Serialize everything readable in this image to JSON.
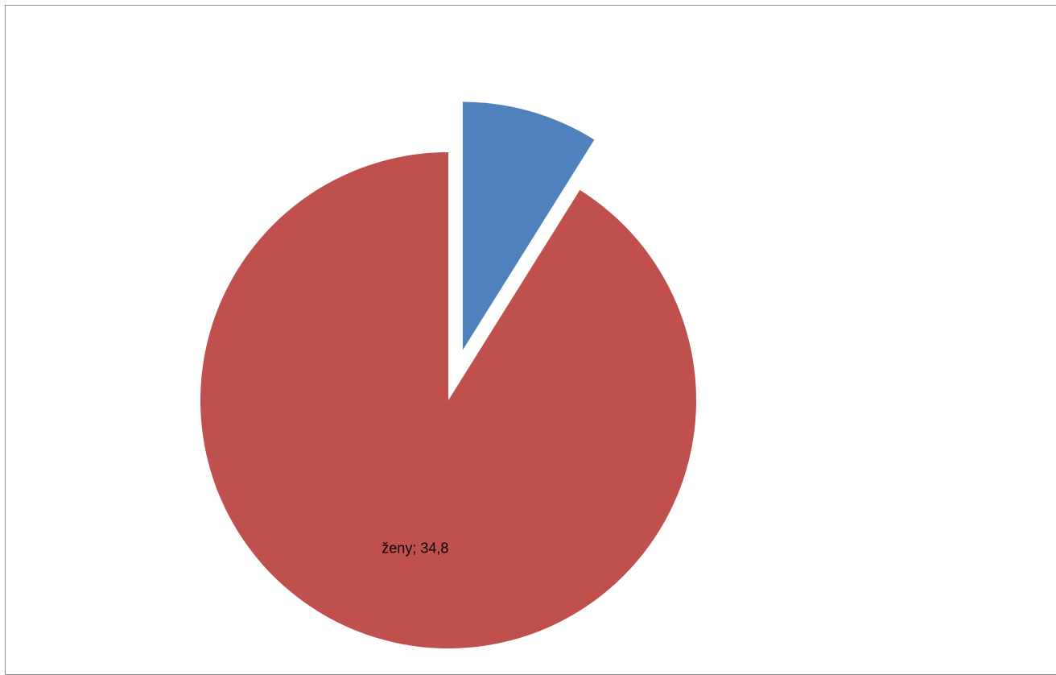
{
  "chart_data": {
    "type": "pie",
    "slices": [
      {
        "name": "",
        "value": 3.4,
        "color": "#4F81BD",
        "exploded": true,
        "label": ""
      },
      {
        "name": "ženy",
        "value": 34.8,
        "color": "#C0504D",
        "exploded": false,
        "label": "ženy; 34,8"
      }
    ],
    "start_angle_deg": 0,
    "direction": "clockwise",
    "legend": "none"
  }
}
